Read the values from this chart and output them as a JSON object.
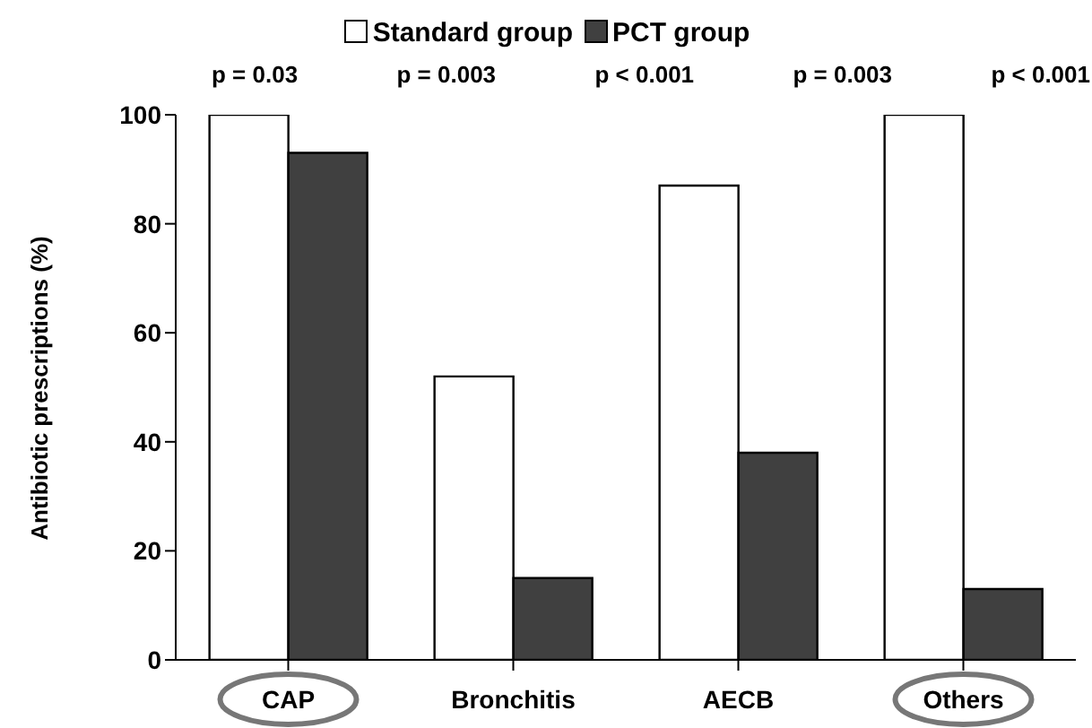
{
  "chart_data": {
    "type": "bar",
    "categories": [
      "CAP",
      "Bronchitis",
      "AECB",
      "Others"
    ],
    "series": [
      {
        "name": "Standard group",
        "color": "#ffffff",
        "values": [
          100,
          52,
          87,
          100
        ]
      },
      {
        "name": "PCT group",
        "color": "#404040",
        "values": [
          93,
          15,
          38,
          13
        ]
      }
    ],
    "ylabel": "Antibiotic prescriptions (%)",
    "ylim": [
      0,
      100
    ],
    "yticks": [
      0,
      20,
      40,
      60,
      80,
      100
    ],
    "annotations": [
      "p = 0.03",
      "p = 0.003",
      "p < 0.001",
      "p = 0.003",
      "p < 0.001"
    ],
    "legend": "top",
    "grid": false
  }
}
